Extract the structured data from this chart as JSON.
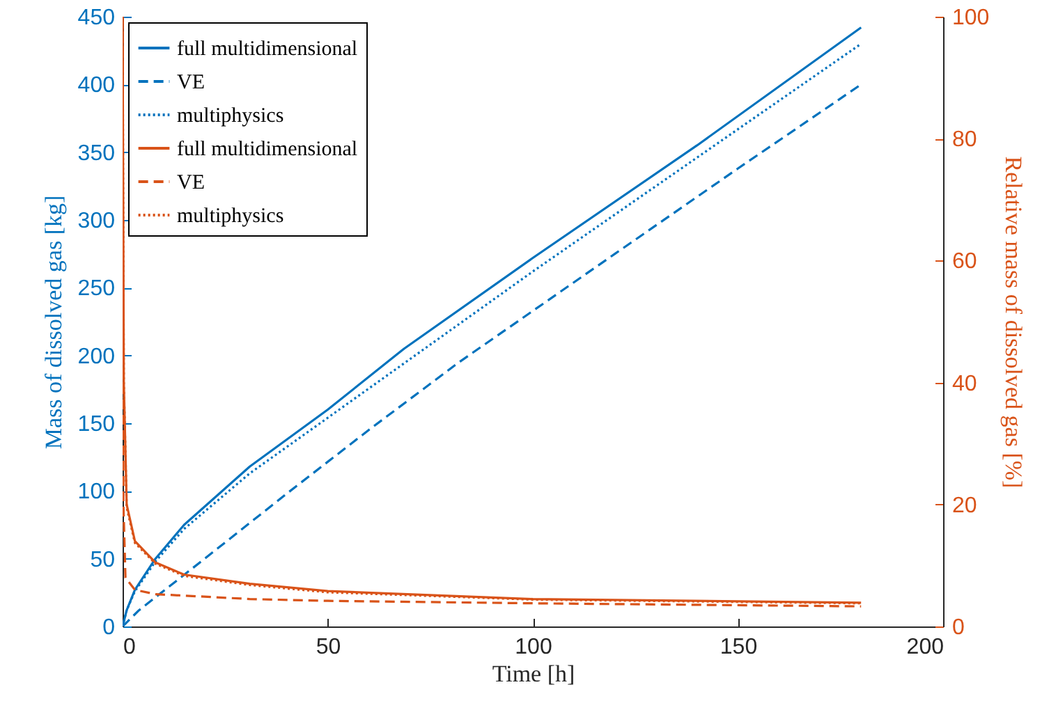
{
  "chart_data": {
    "type": "line",
    "xlabel": "Time [h]",
    "ylabel": "Mass of dissolved gas [kg]",
    "y2label": "Relative mass of dissolved gas [%]",
    "xlim": [
      0,
      200
    ],
    "xticks": [
      0,
      50,
      100,
      150,
      200
    ],
    "ylim": [
      0,
      450
    ],
    "yticks": [
      0,
      50,
      100,
      150,
      200,
      250,
      300,
      350,
      400,
      450
    ],
    "y2lim": [
      0,
      100
    ],
    "y2ticks": [
      0,
      20,
      40,
      60,
      80,
      100
    ],
    "grid": false,
    "legend": "top left",
    "marker": "none",
    "series": [
      {
        "name": "full multidimensional",
        "color": "#0072bd",
        "line_style": "solid",
        "x": [
          0,
          1,
          3,
          8,
          15,
          31,
          50,
          68.6,
          100,
          140,
          180
        ],
        "values": [
          0,
          12,
          27,
          50,
          75,
          118,
          160,
          205,
          272,
          355,
          442
        ]
      },
      {
        "name": "VE",
        "color": "#0072bd",
        "line_style": "dashed",
        "x": [
          0,
          4,
          20,
          40,
          60,
          82,
          120,
          150,
          180
        ],
        "values": [
          0,
          12,
          50,
          98,
          145,
          195,
          275,
          338,
          400
        ]
      },
      {
        "name": "multiphysics",
        "color": "#0072bd",
        "line_style": "dotted",
        "x": [
          0,
          1,
          3,
          8,
          15,
          31,
          50,
          100,
          140,
          180
        ],
        "values": [
          0,
          12,
          26,
          48,
          72,
          113,
          154,
          262,
          346,
          430
        ]
      },
      {
        "name": "full multidimensional",
        "color": "#d95319",
        "line_style": "solid",
        "axis": "y2",
        "x": [
          0,
          0.3,
          1,
          3,
          8,
          15,
          31,
          50,
          100,
          180
        ],
        "values": [
          100,
          40,
          20,
          14,
          10.5,
          8.5,
          7,
          5.8,
          4.5,
          3.9
        ]
      },
      {
        "name": "VE",
        "color": "#d95319",
        "line_style": "dashed",
        "axis": "y2",
        "x": [
          0,
          0.2,
          0.7,
          3,
          8,
          31,
          50,
          100,
          180
        ],
        "values": [
          100,
          20,
          8,
          6,
          5.3,
          4.5,
          4.2,
          3.8,
          3.3
        ]
      },
      {
        "name": "multiphysics",
        "color": "#d95319",
        "line_style": "dotted",
        "axis": "y2",
        "x": [
          0,
          0.3,
          1,
          3,
          8,
          15,
          31,
          50,
          100,
          180
        ],
        "values": [
          100,
          40,
          19.5,
          13.7,
          10.3,
          8.3,
          6.8,
          5.6,
          4.4,
          3.8
        ]
      }
    ]
  }
}
